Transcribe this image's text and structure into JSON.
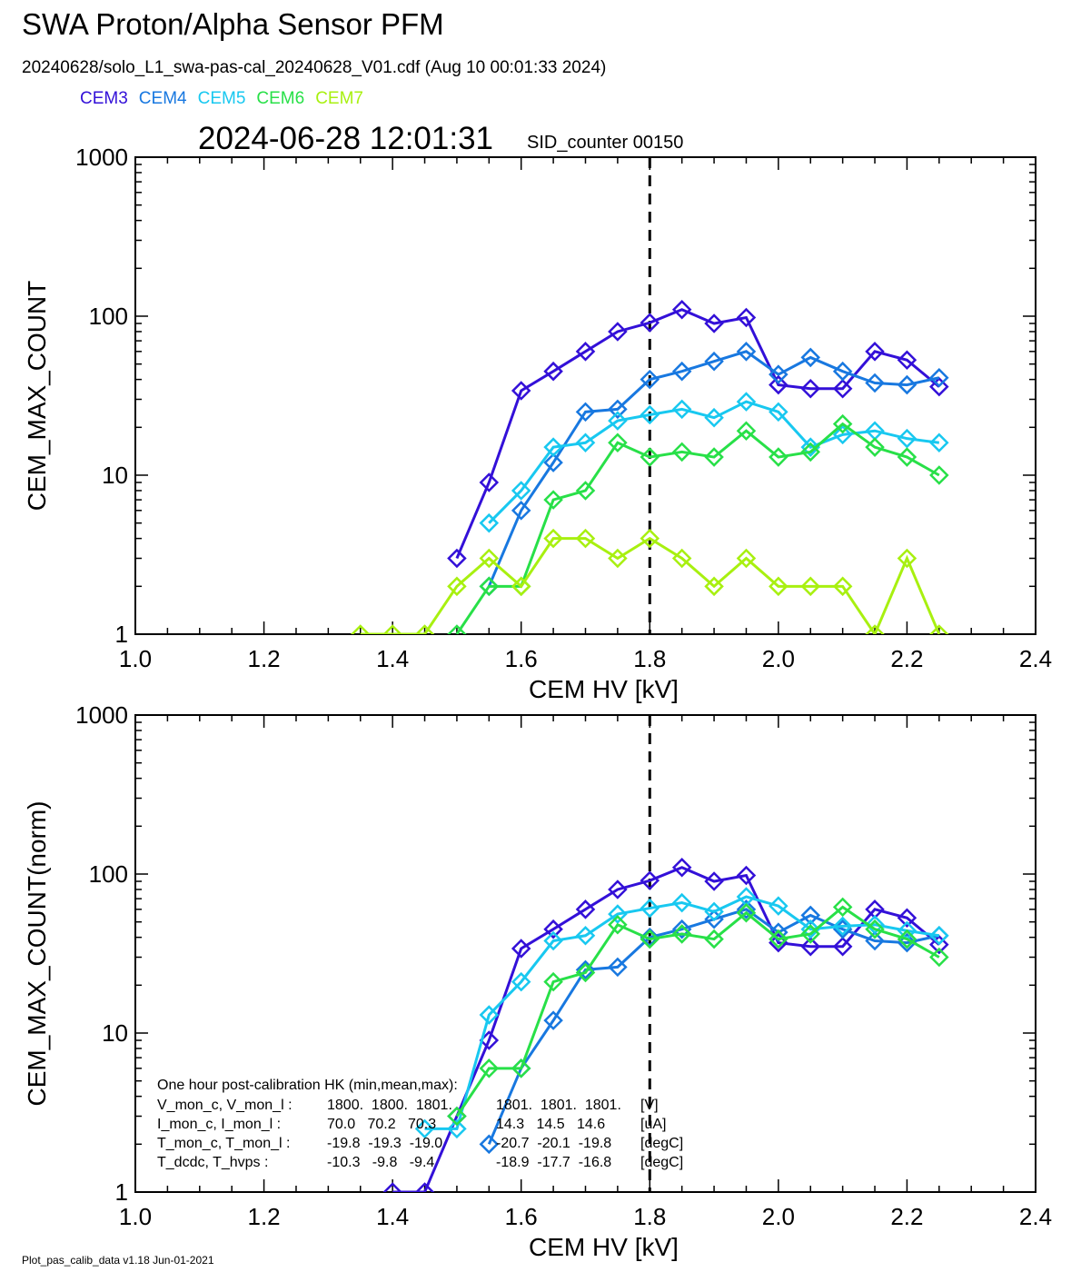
{
  "header": {
    "title": "SWA Proton/Alpha Sensor PFM",
    "subtitle": "20240628/solo_L1_swa-pas-cal_20240628_V01.cdf  (Aug 10 00:01:33 2024)",
    "timestamp": "2024-06-28 12:01:31",
    "sid_counter": "SID_counter 00150"
  },
  "footer": {
    "version": "Plot_pas_calib_data v1.18 Jun-01-2021"
  },
  "colors": {
    "CEM3": "#3310d8",
    "CEM4": "#1878e0",
    "CEM5": "#18c8f0",
    "CEM6": "#28e048",
    "CEM7": "#a8f010"
  },
  "chart_data": [
    {
      "type": "line",
      "xlabel": "CEM HV [kV]",
      "ylabel": "CEM_MAX_COUNT",
      "xlim": [
        1.0,
        2.4
      ],
      "ylim": [
        1,
        1000
      ],
      "yscale": "log",
      "x_ticks": [
        "1.0",
        "1.2",
        "1.4",
        "1.6",
        "1.8",
        "2.0",
        "2.2",
        "2.4"
      ],
      "y_ticks": [
        "1",
        "10",
        "100",
        "1000"
      ],
      "vline_x": 1.8,
      "x": [
        1.35,
        1.4,
        1.45,
        1.5,
        1.55,
        1.6,
        1.65,
        1.7,
        1.75,
        1.8,
        1.85,
        1.9,
        1.95,
        2.0,
        2.05,
        2.1,
        2.15,
        2.2,
        2.25
      ],
      "series": [
        {
          "name": "CEM3",
          "values": [
            0,
            0,
            0,
            3,
            9,
            34,
            45,
            60,
            80,
            91,
            110,
            90,
            98,
            37,
            35,
            35,
            60,
            53,
            36
          ]
        },
        {
          "name": "CEM4",
          "values": [
            0,
            0,
            0,
            0,
            2,
            6,
            12,
            25,
            26,
            40,
            45,
            52,
            60,
            43,
            55,
            45,
            38,
            37,
            41
          ]
        },
        {
          "name": "CEM5",
          "values": [
            0,
            0,
            0,
            0,
            5,
            8,
            15,
            16,
            22,
            24,
            26,
            23,
            29,
            25,
            15,
            18,
            19,
            17,
            16
          ]
        },
        {
          "name": "CEM6",
          "values": [
            0,
            0,
            0,
            1,
            2,
            2,
            7,
            8,
            16,
            13,
            14,
            13,
            19,
            13,
            14,
            21,
            15,
            13,
            10
          ]
        },
        {
          "name": "CEM7",
          "values": [
            1,
            1,
            1,
            2,
            3,
            2,
            4,
            4,
            3,
            4,
            3,
            2,
            3,
            2,
            2,
            2,
            1,
            3,
            1
          ]
        }
      ]
    },
    {
      "type": "line",
      "xlabel": "CEM HV [kV]",
      "ylabel": "CEM_MAX_COUNT(norm)",
      "xlim": [
        1.0,
        2.4
      ],
      "ylim": [
        1,
        1000
      ],
      "yscale": "log",
      "x_ticks": [
        "1.0",
        "1.2",
        "1.4",
        "1.6",
        "1.8",
        "2.0",
        "2.2",
        "2.4"
      ],
      "y_ticks": [
        "1",
        "10",
        "100",
        "1000"
      ],
      "vline_x": 1.8,
      "x": [
        1.35,
        1.4,
        1.45,
        1.5,
        1.55,
        1.6,
        1.65,
        1.7,
        1.75,
        1.8,
        1.85,
        1.9,
        1.95,
        2.0,
        2.05,
        2.1,
        2.15,
        2.2,
        2.25
      ],
      "series": [
        {
          "name": "CEM3",
          "values": [
            0,
            1,
            1,
            3,
            9,
            34,
            45,
            60,
            80,
            91,
            110,
            90,
            98,
            37,
            35,
            35,
            60,
            53,
            36
          ]
        },
        {
          "name": "CEM4",
          "values": [
            0,
            0,
            0,
            0,
            2,
            6,
            12,
            25,
            26,
            40,
            45,
            52,
            60,
            43,
            55,
            45,
            38,
            37,
            41
          ]
        },
        {
          "name": "CEM5",
          "values": [
            0,
            0,
            2.5,
            2.5,
            13,
            21,
            38,
            41,
            56,
            61,
            66,
            58,
            72,
            63,
            45,
            47,
            48,
            44,
            41
          ]
        },
        {
          "name": "CEM6",
          "values": [
            0,
            0,
            0,
            3,
            6,
            6,
            21,
            24,
            48,
            39,
            42,
            39,
            57,
            39,
            42,
            62,
            45,
            39,
            30
          ]
        }
      ],
      "annotation": {
        "title": "One hour post-calibration HK (min,mean,max):",
        "rows": [
          {
            "label": "V_mon_c, V_mon_l :",
            "a": "1800.  1800.  1801.",
            "b": "1801.  1801.  1801.",
            "unit": "[V]"
          },
          {
            "label": "I_mon_c, I_mon_l :",
            "a": "70.0   70.2   70.3",
            "b": "14.3   14.5   14.6",
            "unit": "[uA]"
          },
          {
            "label": "T_mon_c, T_mon_l :",
            "a": "-19.8  -19.3  -19.0",
            "b": "-20.7  -20.1  -19.8",
            "unit": "[degC]"
          },
          {
            "label": "T_dcdc,    T_hvps :",
            "a": "-10.3   -9.8   -9.4",
            "b": "-18.9  -17.7  -16.8",
            "unit": "[degC]"
          }
        ]
      }
    }
  ]
}
